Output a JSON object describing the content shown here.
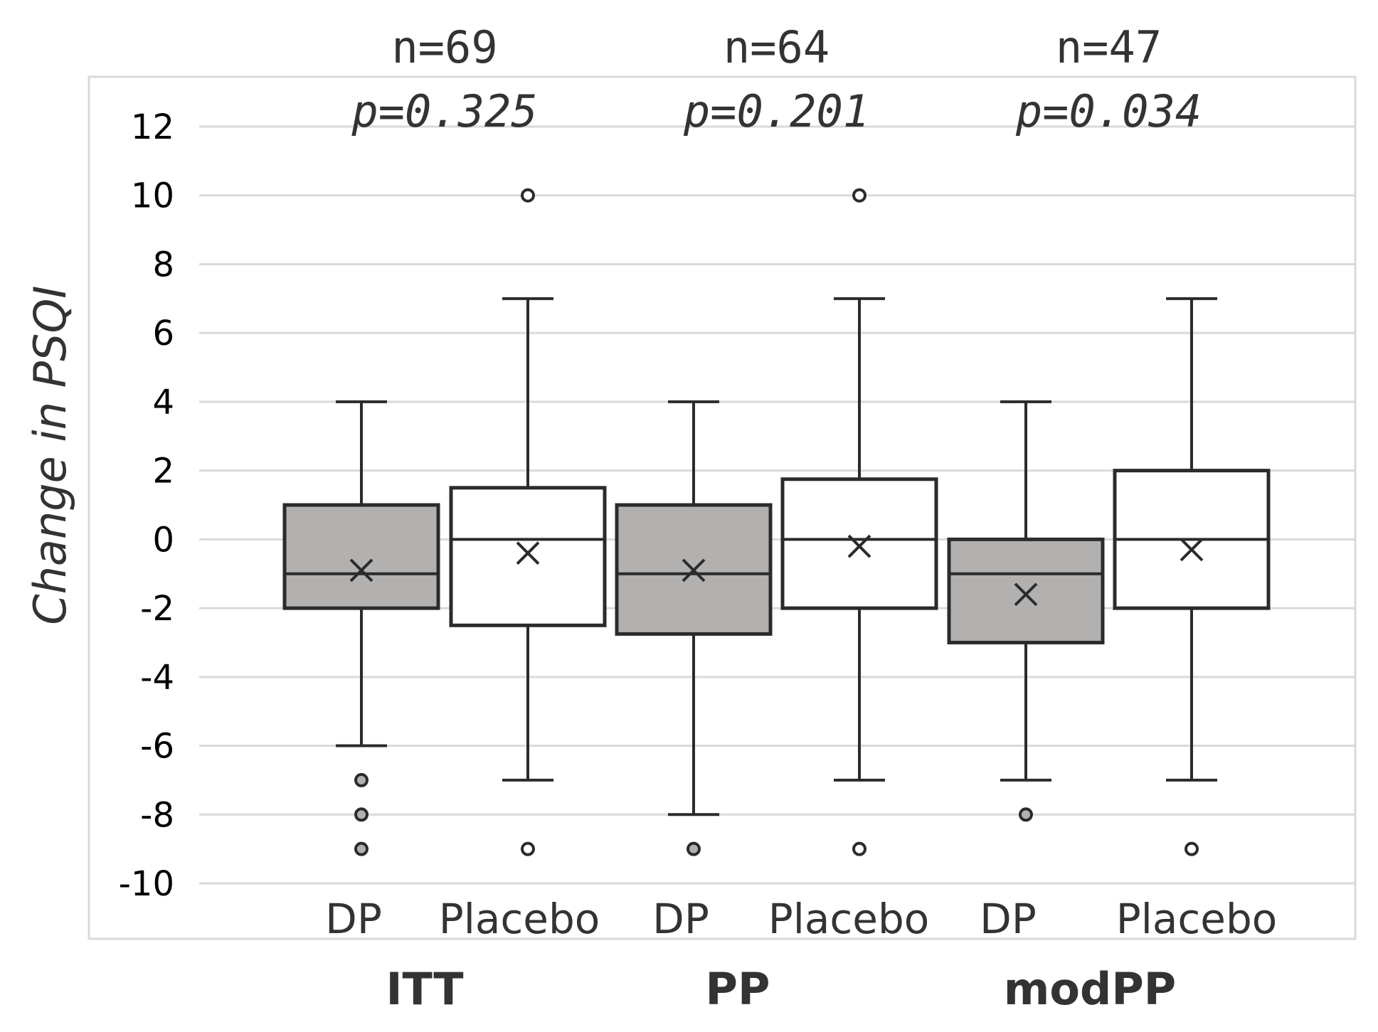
{
  "chart_data": {
    "type": "boxplot",
    "ylabel": "Change in PSQI",
    "ylim": [
      -10,
      12
    ],
    "yticks": [
      12,
      10,
      8,
      6,
      4,
      2,
      0,
      -2,
      -4,
      -6,
      -8,
      -10
    ],
    "grid": true,
    "colors": {
      "DP": "#b3b0b0",
      "Placebo": "#ffffff",
      "outline": "#2b2b2b",
      "grid": "#d9d9d9"
    },
    "groups": [
      {
        "name": "ITT",
        "n_label": "n=69",
        "p_label": "p=0.325",
        "boxes": [
          {
            "label": "DP",
            "whisker_low": -6,
            "q1": -2,
            "median": -1,
            "q3": 1,
            "whisker_high": 4,
            "mean": -0.9,
            "outliers": [
              -7,
              -8,
              -9
            ]
          },
          {
            "label": "Placebo",
            "whisker_low": -7,
            "q1": -2.5,
            "median": 0,
            "q3": 1.5,
            "whisker_high": 7,
            "mean": -0.4,
            "outliers": [
              10,
              -9
            ]
          }
        ]
      },
      {
        "name": "PP",
        "n_label": "n=64",
        "p_label": "p=0.201",
        "boxes": [
          {
            "label": "DP",
            "whisker_low": -8,
            "q1": -2.75,
            "median": -1,
            "q3": 1,
            "whisker_high": 4,
            "mean": -0.9,
            "outliers": [
              -9
            ]
          },
          {
            "label": "Placebo",
            "whisker_low": -7,
            "q1": -2,
            "median": 0,
            "q3": 1.75,
            "whisker_high": 7,
            "mean": -0.2,
            "outliers": [
              10,
              -9
            ]
          }
        ]
      },
      {
        "name": "modPP",
        "n_label": "n=47",
        "p_label": "p=0.034",
        "boxes": [
          {
            "label": "DP",
            "whisker_low": -7,
            "q1": -3,
            "median": -1,
            "q3": 0,
            "whisker_high": 4,
            "mean": -1.6,
            "outliers": [
              -8
            ]
          },
          {
            "label": "Placebo",
            "whisker_low": -7,
            "q1": -2,
            "median": 0,
            "q3": 2,
            "whisker_high": 7,
            "mean": -0.3,
            "outliers": [
              -9
            ]
          }
        ]
      }
    ]
  }
}
